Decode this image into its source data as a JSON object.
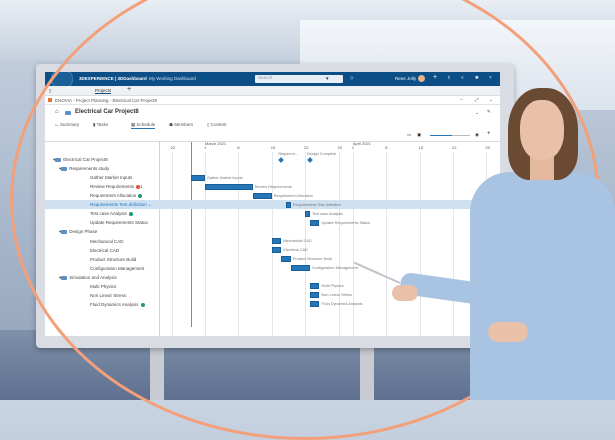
{
  "app": {
    "brand": "3DEXPERIENCE | 3DDashboard",
    "dashboard": "My Working Dashboard",
    "search_placeholder": "Search",
    "user": "Rene Jolly",
    "tab": "Projects",
    "breadcrumb": "ENOVIA - Project Planning - Electrical Car Project8",
    "title": "Electrical Car Project8",
    "tabs": [
      {
        "label": "Summary",
        "icon": "chart-icon"
      },
      {
        "label": "Tasks",
        "icon": "trash-icon"
      },
      {
        "label": "Schedule",
        "icon": "calendar-icon",
        "active": true
      },
      {
        "label": "Members",
        "icon": "people-icon"
      },
      {
        "label": "Content",
        "icon": "document-icon"
      }
    ]
  },
  "colors": {
    "topbar": "#0b4f86",
    "bar": "#2576b8",
    "ring": "#f3a07a",
    "selected_row": "#cfe0f1",
    "status_red": "#e0523a",
    "status_green": "#1f9a6e"
  },
  "chart_data": {
    "type": "gantt",
    "months": [
      {
        "label": "March 2021",
        "date": "2021-03-01"
      },
      {
        "label": "April 2021",
        "date": "2021-04-01"
      }
    ],
    "ticks": [
      {
        "label": "22",
        "date": "2021-02-22"
      },
      {
        "label": "1",
        "date": "2021-03-01"
      },
      {
        "label": "8",
        "date": "2021-03-08"
      },
      {
        "label": "15",
        "date": "2021-03-15"
      },
      {
        "label": "22",
        "date": "2021-03-22"
      },
      {
        "label": "29",
        "date": "2021-03-29"
      },
      {
        "label": "1",
        "date": "2021-04-01"
      },
      {
        "label": "8",
        "date": "2021-04-08"
      },
      {
        "label": "15",
        "date": "2021-04-15"
      },
      {
        "label": "22",
        "date": "2021-04-22"
      },
      {
        "label": "29",
        "date": "2021-04-29"
      }
    ],
    "milestones": [
      {
        "label": "Requirem...",
        "date": "2021-03-17"
      },
      {
        "label": "Design Complete",
        "date": "2021-03-23"
      }
    ],
    "tasks": [
      {
        "name": "Electrical Car Project8",
        "level": 0,
        "group": true
      },
      {
        "name": "Requirements study",
        "level": 1,
        "group": true
      },
      {
        "name": "Gather Market Inputs",
        "level": 2,
        "start": "2021-02-26",
        "end": "2021-03-01"
      },
      {
        "name": "Review Requirements",
        "level": 2,
        "start": "2021-03-01",
        "end": "2021-03-11",
        "status": "red",
        "badge": "1"
      },
      {
        "name": "Requirement Allocation",
        "level": 2,
        "start": "2021-03-11",
        "end": "2021-03-15",
        "status": "green"
      },
      {
        "name": "Requirements Test definition",
        "level": 2,
        "start": "2021-03-18",
        "end": "2021-03-19",
        "selected": true
      },
      {
        "name": "Test case Analysis",
        "level": 2,
        "start": "2021-03-22",
        "end": "2021-03-23",
        "status": "green"
      },
      {
        "name": "Update Requirements Status",
        "level": 2,
        "start": "2021-03-23",
        "end": "2021-03-25"
      },
      {
        "name": "Design Phase",
        "level": 1,
        "group": true
      },
      {
        "name": "Mechanical CAD",
        "level": 2,
        "start": "2021-03-15",
        "end": "2021-03-17"
      },
      {
        "name": "Electrical CAD",
        "level": 2,
        "start": "2021-03-15",
        "end": "2021-03-17"
      },
      {
        "name": "Product Structure Build",
        "level": 2,
        "start": "2021-03-17",
        "end": "2021-03-19"
      },
      {
        "name": "Configuration Management",
        "level": 2,
        "start": "2021-03-19",
        "end": "2021-03-23"
      },
      {
        "name": "Simulation and Analysis",
        "level": 1,
        "group": true
      },
      {
        "name": "Multi Physics",
        "level": 2,
        "start": "2021-03-23",
        "end": "2021-03-25"
      },
      {
        "name": "Non Linear Stress",
        "level": 2,
        "start": "2021-03-23",
        "end": "2021-03-25"
      },
      {
        "name": "Fluid Dynamics Analysis",
        "level": 2,
        "start": "2021-03-23",
        "end": "2021-03-25",
        "status": "green"
      }
    ]
  }
}
